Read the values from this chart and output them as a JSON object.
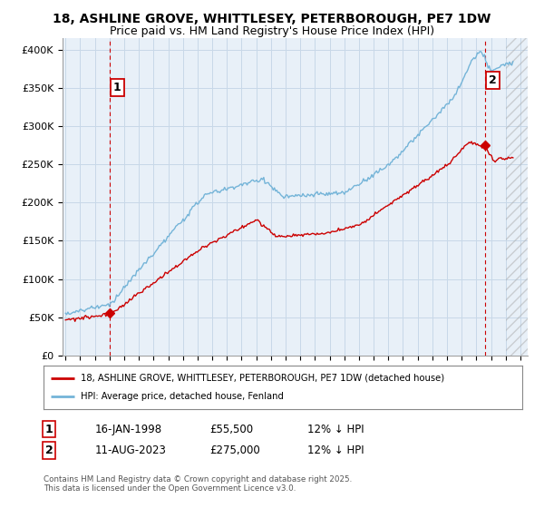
{
  "title": "18, ASHLINE GROVE, WHITTLESEY, PETERBOROUGH, PE7 1DW",
  "subtitle": "Price paid vs. HM Land Registry's House Price Index (HPI)",
  "ylabel_ticks": [
    "£0",
    "£50K",
    "£100K",
    "£150K",
    "£200K",
    "£250K",
    "£300K",
    "£350K",
    "£400K"
  ],
  "ytick_values": [
    0,
    50000,
    100000,
    150000,
    200000,
    250000,
    300000,
    350000,
    400000
  ],
  "ylim": [
    0,
    415000
  ],
  "xlim_start": 1994.8,
  "xlim_end": 2026.5,
  "hpi_color": "#74b4d8",
  "price_color": "#cc0000",
  "chart_bg": "#e8f0f8",
  "point1_x": 1998.04,
  "point1_price": 55500,
  "point2_x": 2023.62,
  "point2_price": 275000,
  "point1_date": "16-JAN-1998",
  "point2_date": "11-AUG-2023",
  "legend_line1": "18, ASHLINE GROVE, WHITTLESEY, PETERBOROUGH, PE7 1DW (detached house)",
  "legend_line2": "HPI: Average price, detached house, Fenland",
  "footer": "Contains HM Land Registry data © Crown copyright and database right 2025.\nThis data is licensed under the Open Government Licence v3.0.",
  "background_color": "#ffffff",
  "grid_color": "#c8d8e8",
  "title_fontsize": 10,
  "subtitle_fontsize": 9,
  "tick_fontsize": 8,
  "hatched_start": 2025.0
}
